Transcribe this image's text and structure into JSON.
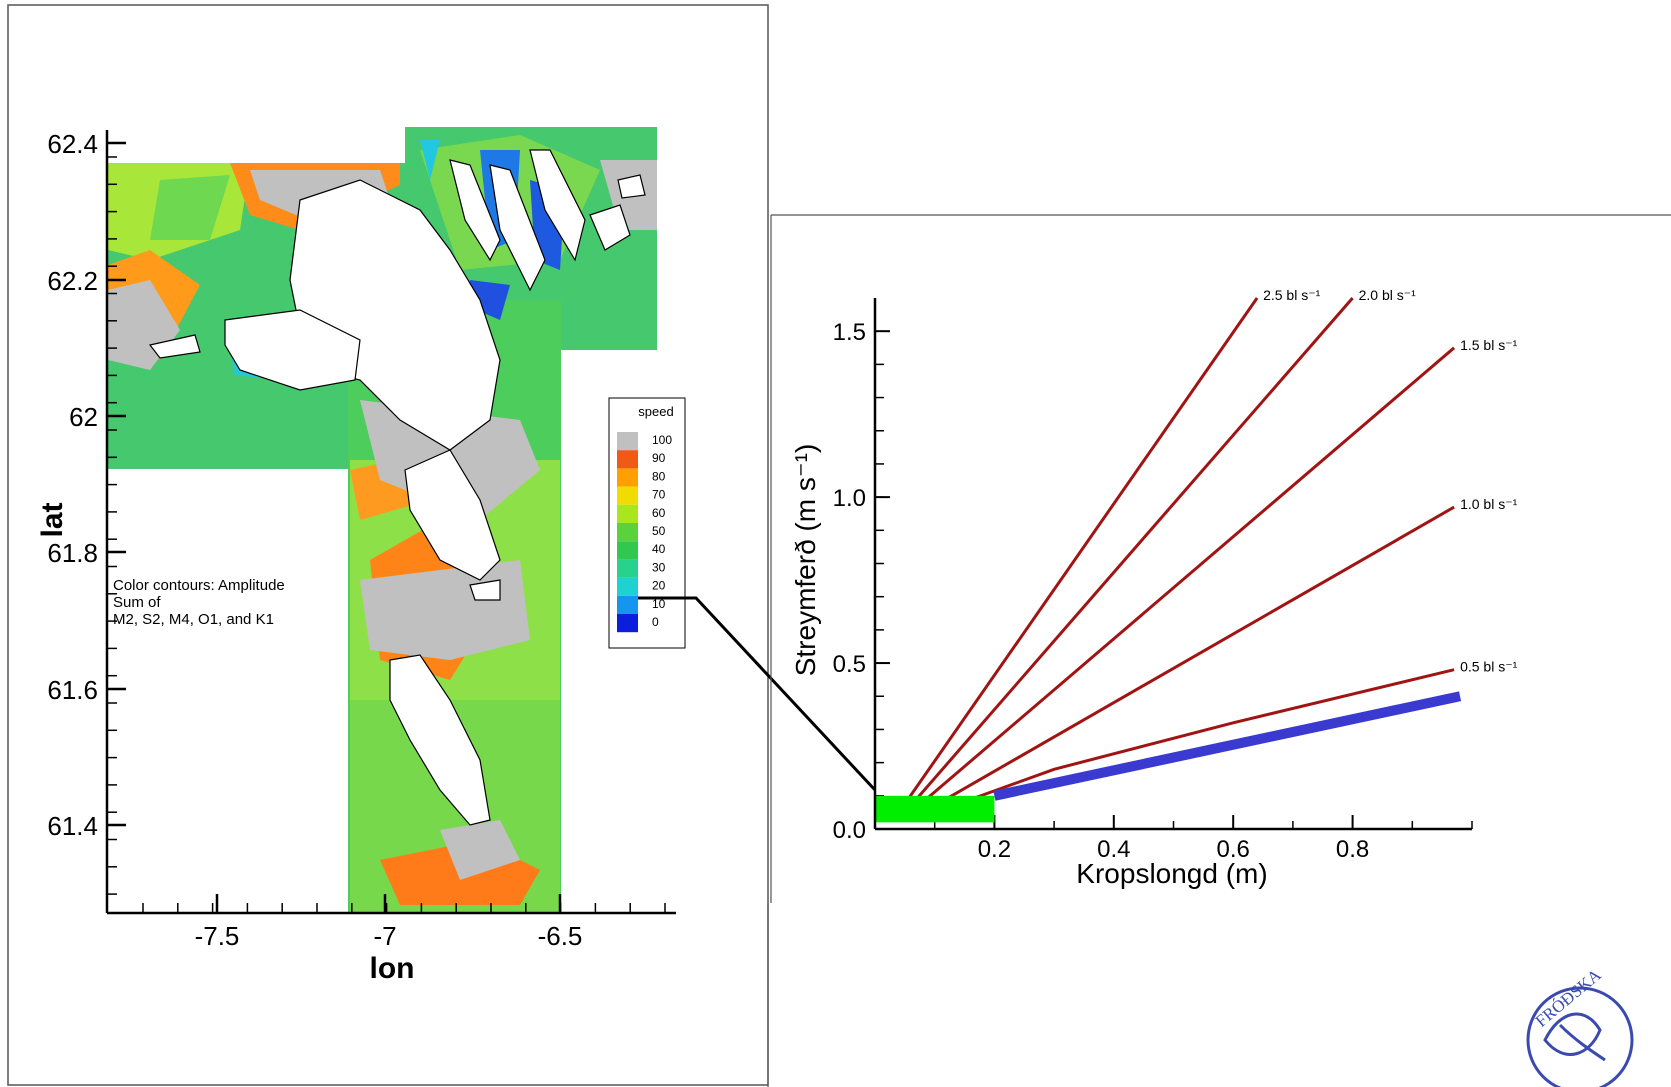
{
  "map_panel": {
    "x_axis_label": "lon",
    "y_axis_label": "lat",
    "x_ticks": [
      "-7.5",
      "-7",
      "-6.5"
    ],
    "y_ticks": [
      "62.4",
      "62.2",
      "62",
      "61.8",
      "61.6",
      "61.4"
    ],
    "annotation_lines": [
      "Color contours: Amplitude",
      "Sum of",
      "M2, S2, M4, O1, and K1"
    ],
    "legend_title": "speed",
    "legend_levels": [
      {
        "label": "100",
        "color": "#c0c0c0"
      },
      {
        "label": "90",
        "color": "#f05a14"
      },
      {
        "label": "80",
        "color": "#ffa000"
      },
      {
        "label": "70",
        "color": "#f0dc00"
      },
      {
        "label": "60",
        "color": "#a8e61e"
      },
      {
        "label": "50",
        "color": "#5ad23c"
      },
      {
        "label": "40",
        "color": "#32c850"
      },
      {
        "label": "30",
        "color": "#28d28c"
      },
      {
        "label": "20",
        "color": "#1ed2d2"
      },
      {
        "label": "10",
        "color": "#1496f0"
      },
      {
        "label": "0",
        "color": "#0a1edc"
      }
    ]
  },
  "chart_data": {
    "type": "line",
    "title": "",
    "xlabel": "Kropslongd (m)",
    "ylabel": "Streymferð (m s⁻¹)",
    "xlim": [
      0,
      1.0
    ],
    "ylim": [
      0,
      1.6
    ],
    "x_ticks": [
      "0.2",
      "0.4",
      "0.6",
      "0.8"
    ],
    "y_ticks": [
      "0.0",
      "0.5",
      "1.0",
      "1.5"
    ],
    "series": [
      {
        "name": "2.5 bl s⁻¹",
        "color": "#a01414",
        "points": [
          [
            0.04,
            0.05
          ],
          [
            0.64,
            1.6
          ]
        ]
      },
      {
        "name": "2.0 bl s⁻¹",
        "color": "#a01414",
        "points": [
          [
            0.05,
            0.05
          ],
          [
            0.8,
            1.6
          ]
        ]
      },
      {
        "name": "1.5 bl s⁻¹",
        "color": "#a01414",
        "points": [
          [
            0.06,
            0.05
          ],
          [
            0.97,
            1.45
          ]
        ]
      },
      {
        "name": "1.0 bl s⁻¹",
        "color": "#a01414",
        "points": [
          [
            0.08,
            0.05
          ],
          [
            0.97,
            0.97
          ]
        ]
      },
      {
        "name": "0.5 bl s⁻¹",
        "color": "#a01414",
        "points": [
          [
            0.1,
            0.05
          ],
          [
            0.3,
            0.18
          ],
          [
            0.6,
            0.32
          ],
          [
            0.97,
            0.48
          ]
        ]
      }
    ],
    "highlight_line": {
      "color": "#3a3ad0",
      "points": [
        [
          0.2,
          0.1
        ],
        [
          0.98,
          0.4
        ]
      ]
    },
    "highlight_box": {
      "color": "#00ee00",
      "x": [
        0,
        0.2
      ],
      "y": [
        0.02,
        0.1
      ]
    }
  }
}
